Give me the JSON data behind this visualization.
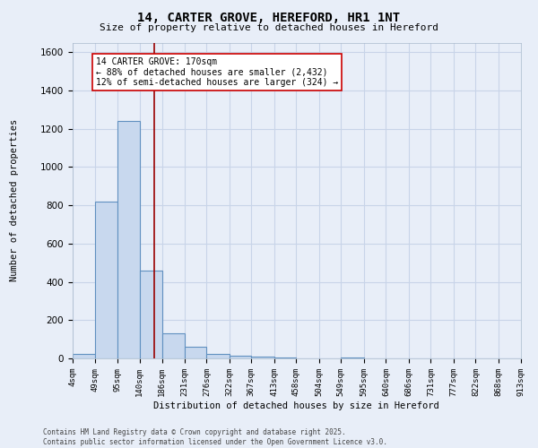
{
  "title": "14, CARTER GROVE, HEREFORD, HR1 1NT",
  "subtitle": "Size of property relative to detached houses in Hereford",
  "xlabel": "Distribution of detached houses by size in Hereford",
  "ylabel": "Number of detached properties",
  "bin_edges": [
    4,
    49,
    95,
    140,
    186,
    231,
    276,
    322,
    367,
    413,
    458,
    504,
    549,
    595,
    640,
    686,
    731,
    777,
    822,
    868,
    913
  ],
  "bar_heights": [
    25,
    820,
    1240,
    460,
    130,
    60,
    25,
    15,
    10,
    5,
    0,
    0,
    5,
    0,
    0,
    0,
    0,
    0,
    0,
    0
  ],
  "bar_color": "#c8d8ee",
  "bar_edge_color": "#6090c0",
  "grid_color": "#c8d4e8",
  "background_color": "#e8eef8",
  "vline_x": 170,
  "vline_color": "#990000",
  "annotation_text": "14 CARTER GROVE: 170sqm\n← 88% of detached houses are smaller (2,432)\n12% of semi-detached houses are larger (324) →",
  "annotation_box_facecolor": "#ffffff",
  "annotation_box_edgecolor": "#cc0000",
  "ylim": [
    0,
    1650
  ],
  "yticks": [
    0,
    200,
    400,
    600,
    800,
    1000,
    1200,
    1400,
    1600
  ],
  "footer_line1": "Contains HM Land Registry data © Crown copyright and database right 2025.",
  "footer_line2": "Contains public sector information licensed under the Open Government Licence v3.0."
}
